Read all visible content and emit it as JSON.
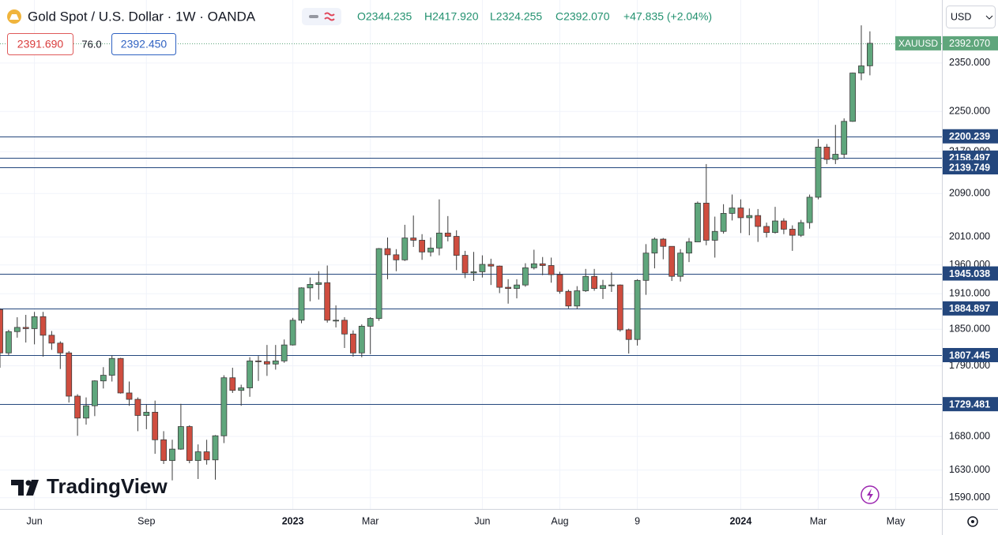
{
  "header": {
    "title": "Gold Spot / U.S. Dollar · 1W · OANDA",
    "ohlc": [
      "O2344.235",
      "H2417.920",
      "L2324.255",
      "C2392.070",
      "+47.835 (+2.04%)"
    ],
    "bid": "2391.690",
    "spread": "76.0",
    "ask": "2392.450",
    "currency": "USD"
  },
  "branding": {
    "logo": "TradingView"
  },
  "chart_data": {
    "type": "candlestick",
    "categories": [
      null,
      null,
      null,
      null,
      "Jun",
      null,
      null,
      null,
      null,
      null,
      null,
      null,
      null,
      null,
      null,
      null,
      null,
      "Sep",
      null,
      null,
      null,
      null,
      null,
      null,
      null,
      null,
      null,
      null,
      null,
      null,
      null,
      null,
      null,
      null,
      "2023",
      null,
      null,
      null,
      null,
      null,
      null,
      null,
      null,
      "Mar",
      null,
      null,
      null,
      null,
      null,
      null,
      null,
      null,
      null,
      null,
      null,
      null,
      "Jun",
      null,
      null,
      null,
      null,
      null,
      null,
      null,
      null,
      "Aug",
      null,
      null,
      null,
      null,
      null,
      null,
      null,
      null,
      "9",
      null,
      null,
      null,
      null,
      null,
      null,
      null,
      null,
      null,
      null,
      null,
      "2024",
      null,
      null,
      null,
      null,
      null,
      null,
      null,
      null,
      "Mar",
      null,
      null,
      null,
      null,
      null,
      null,
      null,
      null,
      "May"
    ],
    "open": [
      1883,
      1811,
      1846,
      1853,
      1851,
      1871,
      1840,
      1827,
      1811,
      1742,
      1708,
      1727,
      1766,
      1775,
      1802,
      1747,
      1737,
      1712,
      1717,
      1675,
      1644,
      1661,
      1695,
      1644,
      1657,
      1645,
      1681,
      1771,
      1751,
      1755,
      1798,
      1797,
      1793,
      1798,
      1824,
      1865,
      1920,
      1926,
      1929,
      1865,
      1865,
      1842,
      1811,
      1855,
      1868,
      1989,
      1978,
      1969,
      2008,
      2004,
      1983,
      1990,
      2017,
      2011,
      1977,
      1946,
      1948,
      1961,
      1958,
      1921,
      1919,
      1925,
      1955,
      1962,
      1959,
      1943,
      1914,
      1889,
      1915,
      1940,
      1919,
      1924,
      1925,
      1849,
      1833,
      1933,
      1981,
      2006,
      1993,
      1940,
      1981,
      2001,
      2072,
      2004,
      2020,
      2053,
      2063,
      2045,
      2049,
      2029,
      2018,
      2039,
      2024,
      2013,
      2036,
      2083,
      2179,
      2155,
      2165,
      2230,
      2329,
      2344.235,
      null,
      null,
      null
    ],
    "high": [
      1885,
      1849,
      1870,
      1874,
      1879,
      1879,
      1847,
      1830,
      1814,
      1745,
      1740,
      1767,
      1788,
      1807,
      1803,
      1765,
      1740,
      1729,
      1735,
      1688,
      1675,
      1730,
      1697,
      1668,
      1675,
      1682,
      1775,
      1787,
      1760,
      1804,
      1806,
      1824,
      1824,
      1833,
      1869,
      1921,
      1938,
      1949,
      1959,
      1890,
      1870,
      1848,
      1858,
      1870,
      1990,
      2009,
      1988,
      2032,
      2049,
      2015,
      2009,
      2079,
      2048,
      2022,
      1985,
      1983,
      1977,
      1971,
      1959,
      1935,
      1935,
      1963,
      1987,
      1974,
      1973,
      1948,
      1917,
      1923,
      1953,
      1953,
      1934,
      1947,
      1926,
      1851,
      1935,
      1997,
      2009,
      2008,
      1993,
      1988,
      2008,
      2075,
      2146,
      2047,
      2070,
      2088,
      2079,
      2062,
      2061,
      2036,
      2065,
      2044,
      2031,
      2041,
      2088,
      2195,
      2185,
      2223,
      2236,
      2330,
      2431,
      2417.92,
      null,
      null,
      null
    ],
    "low": [
      1787,
      1807,
      1836,
      1828,
      1825,
      1805,
      1816,
      1785,
      1732,
      1681,
      1698,
      1711,
      1754,
      1765,
      1746,
      1727,
      1688,
      1691,
      1654,
      1639,
      1615,
      1660,
      1640,
      1617,
      1638,
      1616,
      1670,
      1747,
      1727,
      1741,
      1766,
      1774,
      1784,
      1795,
      1823,
      1860,
      1897,
      1900,
      1861,
      1853,
      1819,
      1805,
      1804,
      1809,
      1864,
      1935,
      1949,
      1967,
      1992,
      1969,
      1975,
      1977,
      2002,
      1951,
      1937,
      1932,
      1938,
      1925,
      1911,
      1893,
      1902,
      1922,
      1952,
      1942,
      1929,
      1910,
      1885,
      1884,
      1913,
      1915,
      1901,
      1913,
      1846,
      1810,
      1823,
      1908,
      1954,
      1970,
      1932,
      1931,
      1965,
      2001,
      1995,
      1973,
      2016,
      2040,
      2017,
      2013,
      2001,
      2009,
      2016,
      2015,
      1985,
      2010,
      2025,
      2079,
      2146,
      2146,
      2157,
      2229,
      2314,
      2324.255,
      null,
      null,
      null
    ],
    "close": [
      1811,
      1846,
      1853,
      1851,
      1871,
      1840,
      1827,
      1811,
      1742,
      1708,
      1727,
      1766,
      1775,
      1802,
      1747,
      1737,
      1712,
      1717,
      1675,
      1644,
      1661,
      1695,
      1644,
      1657,
      1645,
      1681,
      1771,
      1751,
      1755,
      1798,
      1797,
      1793,
      1798,
      1824,
      1865,
      1920,
      1926,
      1929,
      1865,
      1865,
      1842,
      1811,
      1855,
      1868,
      1989,
      1978,
      1969,
      2008,
      2004,
      1983,
      1990,
      2017,
      2011,
      1977,
      1946,
      1948,
      1961,
      1958,
      1921,
      1919,
      1925,
      1955,
      1962,
      1959,
      1943,
      1914,
      1889,
      1915,
      1940,
      1919,
      1924,
      1925,
      1849,
      1833,
      1933,
      1981,
      2006,
      1993,
      1940,
      1981,
      2001,
      2072,
      2004,
      2020,
      2053,
      2063,
      2045,
      2049,
      2029,
      2018,
      2039,
      2024,
      2013,
      2036,
      2083,
      2179,
      2155,
      2165,
      2230,
      2329,
      2344,
      2392.07,
      null,
      null,
      null
    ],
    "up_color": "#5fa67c",
    "down_color": "#cf4d3f",
    "wick_color": "#3c3c3c",
    "log_scale": true,
    "grid": true,
    "ylim": [
      1574,
      2487
    ],
    "yticks": [
      {
        "value": 1590,
        "label": "1590.000"
      },
      {
        "value": 1630,
        "label": "1630.000"
      },
      {
        "value": 1680,
        "label": "1680.000"
      },
      {
        "value": 1790,
        "label": "1790.000"
      },
      {
        "value": 1850,
        "label": "1850.000"
      },
      {
        "value": 1910,
        "label": "1910.000"
      },
      {
        "value": 1960,
        "label": "1960.000"
      },
      {
        "value": 2010,
        "label": "2010.000"
      },
      {
        "value": 2090,
        "label": "2090.000"
      },
      {
        "value": 2170,
        "label": "2170.000"
      },
      {
        "value": 2250,
        "label": "2250.000"
      },
      {
        "value": 2350,
        "label": "2350.000"
      }
    ],
    "hlines": [
      2200.239,
      2158.497,
      2139.749,
      1945.038,
      1884.897,
      1807.445,
      1729.481
    ],
    "hline_color": "#24477d",
    "last_price": {
      "symbol": "XAUUSD",
      "value": 2392.07,
      "label": "2392.070"
    }
  }
}
